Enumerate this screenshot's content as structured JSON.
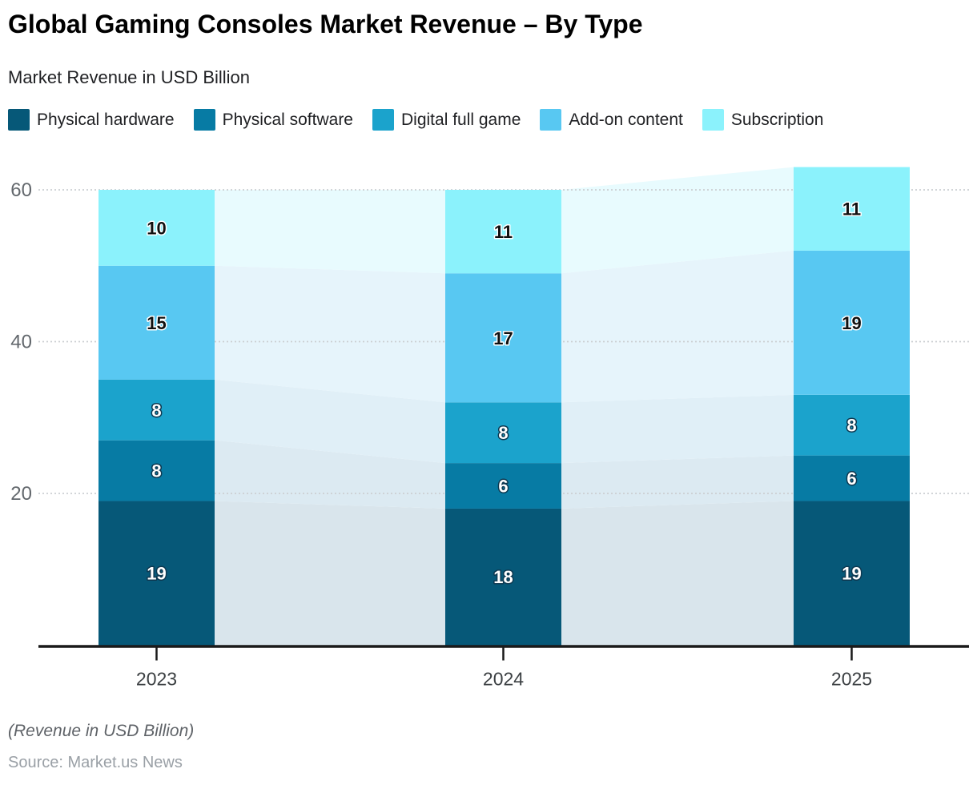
{
  "header": {
    "title": "Global Gaming Consoles Market Revenue – By Type",
    "subtitle": "Market Revenue in USD Billion"
  },
  "chart_data": {
    "type": "bar",
    "stacked": true,
    "title": "Global Gaming Consoles Market Revenue – By Type",
    "subtitle": "Market Revenue in USD Billion",
    "categories": [
      "2023",
      "2024",
      "2025"
    ],
    "series": [
      {
        "name": "Physical hardware",
        "values": [
          19,
          18,
          19
        ],
        "color": "#065878",
        "band_color": "#d9e5ec",
        "label_color": "#ffffff",
        "label_halo": "#0d3850"
      },
      {
        "name": "Physical software",
        "values": [
          8,
          6,
          6
        ],
        "color": "#077ba4",
        "band_color": "#dceaf2",
        "label_color": "#ffffff",
        "label_halo": "#0d3850"
      },
      {
        "name": "Digital full game",
        "values": [
          8,
          8,
          8
        ],
        "color": "#1ba3cc",
        "band_color": "#e0eff7",
        "label_color": "#ffffff",
        "label_halo": "#0d3850"
      },
      {
        "name": "Add-on content",
        "values": [
          15,
          17,
          19
        ],
        "color": "#58c8f2",
        "band_color": "#e6f4fb",
        "label_color": "#111111",
        "label_halo": "#ffffff"
      },
      {
        "name": "Subscription",
        "values": [
          10,
          11,
          11
        ],
        "color": "#8bf2fc",
        "band_color": "#e8fbfe",
        "label_color": "#111111",
        "label_halo": "#ffffff"
      }
    ],
    "totals": [
      60,
      60,
      63
    ],
    "ylim": [
      0,
      65
    ],
    "yticks": [
      20,
      40,
      60
    ],
    "grid": true,
    "legend_position": "top",
    "axis_colors": {
      "axis_line": "#1a1a1a",
      "grid_line": "#cbcfd2",
      "y_tick_label": "#63686d",
      "x_tick_label": "#3c4043"
    }
  },
  "footer": {
    "note": "(Revenue in USD Billion)",
    "source": "Source: Market.us News"
  }
}
